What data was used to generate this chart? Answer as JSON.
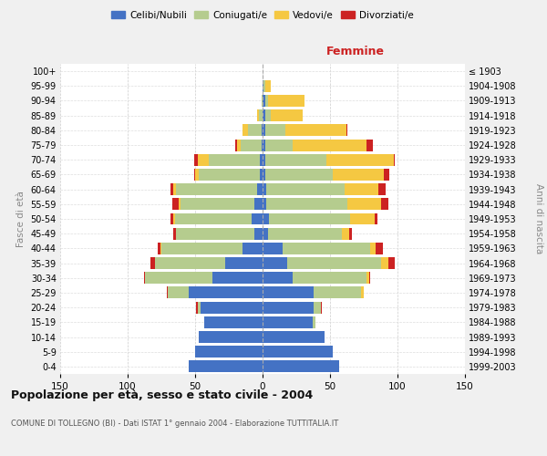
{
  "age_groups": [
    "0-4",
    "5-9",
    "10-14",
    "15-19",
    "20-24",
    "25-29",
    "30-34",
    "35-39",
    "40-44",
    "45-49",
    "50-54",
    "55-59",
    "60-64",
    "65-69",
    "70-74",
    "75-79",
    "80-84",
    "85-89",
    "90-94",
    "95-99",
    "100+"
  ],
  "birth_years": [
    "1999-2003",
    "1994-1998",
    "1989-1993",
    "1984-1988",
    "1979-1983",
    "1974-1978",
    "1969-1973",
    "1964-1968",
    "1959-1963",
    "1954-1958",
    "1949-1953",
    "1944-1948",
    "1939-1943",
    "1934-1938",
    "1929-1933",
    "1924-1928",
    "1919-1923",
    "1914-1918",
    "1909-1913",
    "1904-1908",
    "≤ 1903"
  ],
  "male_celibe": [
    55,
    50,
    47,
    43,
    46,
    55,
    37,
    28,
    15,
    6,
    8,
    6,
    4,
    2,
    2,
    1,
    1,
    0,
    0,
    0,
    0
  ],
  "male_coniugato": [
    0,
    0,
    0,
    0,
    2,
    15,
    50,
    52,
    60,
    58,
    57,
    55,
    60,
    45,
    38,
    15,
    10,
    3,
    1,
    0,
    0
  ],
  "male_vedovo": [
    0,
    0,
    0,
    0,
    0,
    0,
    0,
    0,
    1,
    0,
    1,
    1,
    2,
    3,
    8,
    3,
    4,
    1,
    0,
    0,
    0
  ],
  "male_divorziato": [
    0,
    0,
    0,
    0,
    1,
    1,
    1,
    3,
    2,
    2,
    2,
    5,
    2,
    1,
    3,
    1,
    0,
    0,
    0,
    0,
    0
  ],
  "female_nubile": [
    57,
    52,
    46,
    37,
    38,
    38,
    22,
    18,
    15,
    4,
    5,
    3,
    3,
    2,
    2,
    2,
    2,
    2,
    2,
    1,
    0
  ],
  "female_coniugata": [
    0,
    0,
    0,
    2,
    5,
    35,
    55,
    70,
    65,
    55,
    60,
    60,
    58,
    50,
    45,
    20,
    15,
    4,
    2,
    1,
    0
  ],
  "female_vedova": [
    0,
    0,
    0,
    0,
    0,
    2,
    2,
    5,
    4,
    5,
    18,
    25,
    25,
    38,
    50,
    55,
    45,
    24,
    27,
    4,
    0
  ],
  "female_divorziata": [
    0,
    0,
    0,
    0,
    1,
    0,
    1,
    5,
    5,
    2,
    2,
    5,
    5,
    4,
    1,
    5,
    1,
    0,
    0,
    0,
    0
  ],
  "colors": {
    "celibe": "#4472C4",
    "coniugato": "#B5CC8E",
    "vedovo": "#F5C842",
    "divorziato": "#CC2222"
  },
  "title": "Popolazione per età, sesso e stato civile - 2004",
  "subtitle": "COMUNE DI TOLLEGNO (BI) - Dati ISTAT 1° gennaio 2004 - Elaborazione TUTTITALIA.IT",
  "xlabel_right": "Femmine",
  "ylabel_left": "Fasce di età",
  "ylabel_right": "Anni di nascita",
  "xlim": 150,
  "background_color": "#f0f0f0",
  "plot_bg": "#ffffff",
  "legend_labels": [
    "Celibi/Nubili",
    "Coniugati/e",
    "Vedovi/e",
    "Divorziati/e"
  ]
}
